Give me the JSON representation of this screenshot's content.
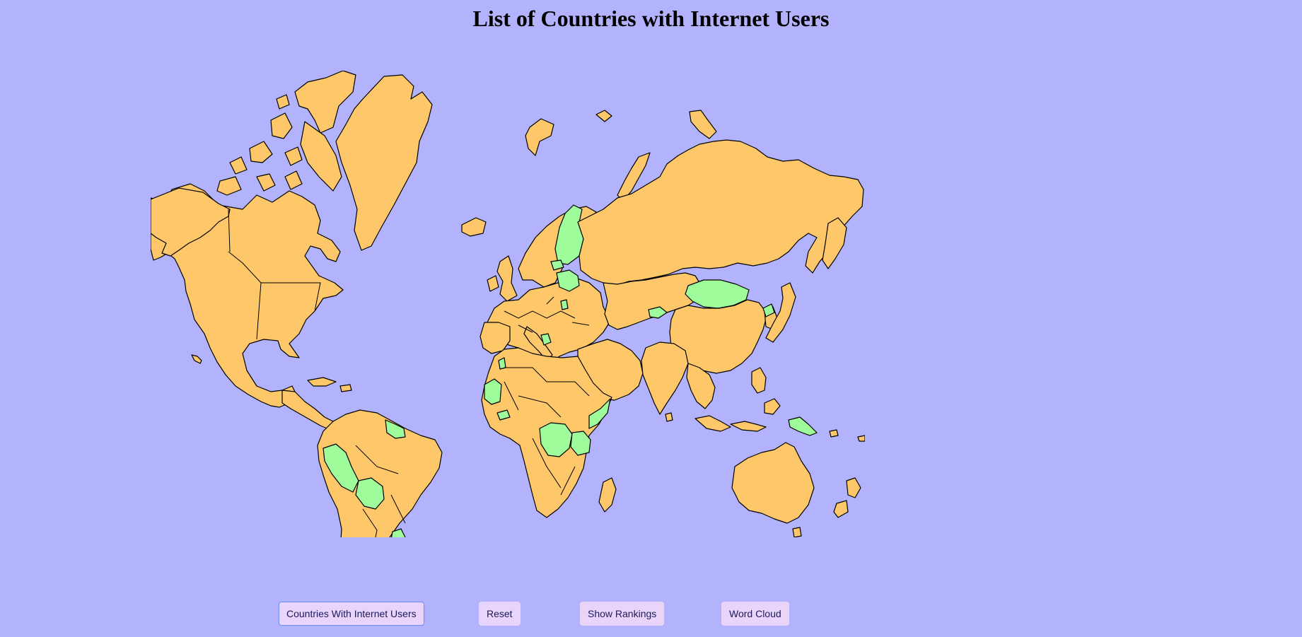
{
  "page": {
    "title": "List of Countries with Internet Users"
  },
  "map": {
    "colors": {
      "background": "#b3b3fd",
      "land": "#fec86a",
      "highlighted": "#9efc9a",
      "border": "#000000"
    }
  },
  "buttons": {
    "internet_users": "Countries With Internet Users",
    "reset": "Reset",
    "rankings": "Show Rankings",
    "word_cloud": "Word Cloud"
  }
}
